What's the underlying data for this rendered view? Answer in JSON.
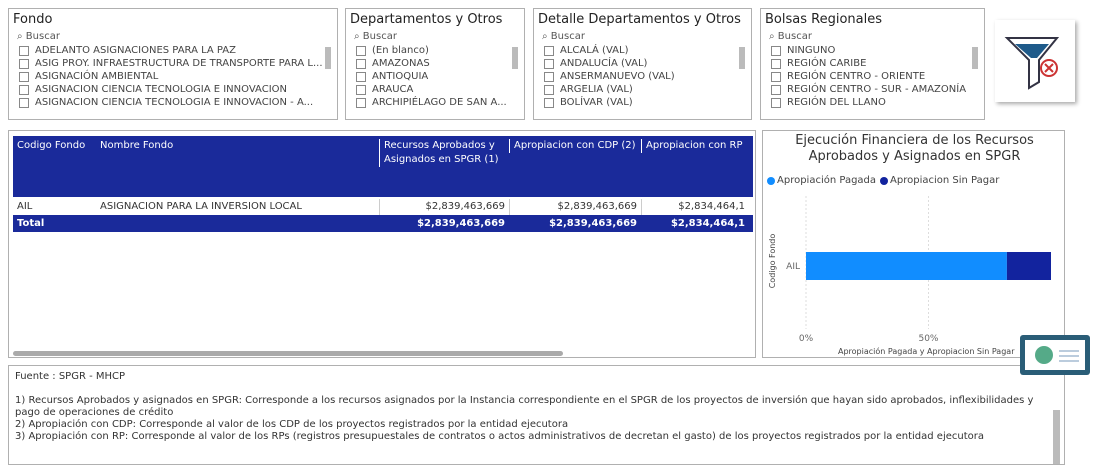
{
  "slicers": [
    {
      "title": "Fondo",
      "search": "Buscar",
      "items": [
        "ADELANTO ASIGNACIONES PARA LA PAZ",
        "ASIG PROY. INFRAESTRUCTURA DE TRANSPORTE PARA L...",
        "ASIGNACIÓN AMBIENTAL",
        "ASIGNACION CIENCIA TECNOLOGIA E INNOVACION",
        "ASIGNACION CIENCIA TECNOLOGIA E INNOVACION - A..."
      ]
    },
    {
      "title": "Departamentos y Otros",
      "search": "Buscar",
      "items": [
        "(En blanco)",
        "AMAZONAS",
        "ANTIOQUIA",
        "ARAUCA",
        "ARCHIPIÉLAGO DE SAN A..."
      ]
    },
    {
      "title": "Detalle Departamentos y Otros",
      "search": "Buscar",
      "items": [
        "ALCALÁ (VAL)",
        "ANDALUCÍA (VAL)",
        "ANSERMANUEVO (VAL)",
        "ARGELIA (VAL)",
        "BOLÍVAR (VAL)"
      ]
    },
    {
      "title": "Bolsas Regionales",
      "search": "Buscar",
      "items": [
        "NINGUNO",
        "REGIÓN CARIBE",
        "REGIÓN CENTRO - ORIENTE",
        "REGIÓN CENTRO - SUR - AMAZONÍA",
        "REGIÓN DEL LLANO"
      ]
    }
  ],
  "table": {
    "columns": [
      "Codigo Fondo",
      "Nombre Fondo",
      "Recursos Aprobados y Asignados en SPGR (1)",
      "Apropiacion con CDP (2)",
      "Apropiacion con RP"
    ],
    "rows": [
      [
        "AIL",
        "ASIGNACION PARA LA INVERSION LOCAL",
        "$2,839,463,669",
        "$2,839,463,669",
        "$2,834,464,1"
      ]
    ],
    "total": [
      "Total",
      "$2,839,463,669",
      "$2,839,463,669",
      "$2,834,464,1"
    ]
  },
  "chart": {
    "type": "bar",
    "title": "Ejecución Financiera de los Recursos Aprobados y Asignados en SPGR",
    "categories": [
      "AIL"
    ],
    "series": [
      {
        "name": "Apropiación Pagada",
        "color": "#118dff",
        "values": [
          82
        ]
      },
      {
        "name": "Apropiacion Sin Pagar",
        "color": "#12239e",
        "values": [
          18
        ]
      }
    ],
    "xlim": [
      0,
      100
    ],
    "xticks": [
      {
        "value": 0,
        "label": "0%"
      },
      {
        "value": 50,
        "label": "50%"
      }
    ],
    "xlabel": "Apropiación Pagada y Apropiacion Sin Pagar",
    "ylabel": "Codigo Fondo",
    "grid": true
  },
  "notes": {
    "source": "Fuente : SPGR - MHCP",
    "lines": [
      "1) Recursos Aprobados y asignados en SPGR: Corresponde a los recursos asignados por la Instancia correspondiente en el SPGR de los proyectos de inversión que hayan sido aprobados,  inflexibilidades y pago de operaciones de crédito",
      "2) Apropiación con CDP: Corresponde al valor de los CDP de los proyectos registrados por la entidad ejecutora",
      "3) Apropiación con RP: Corresponde al valor de los RPs (registros presupuestales de contratos o actos administrativos de decretan el gasto) de los proyectos registrados por la entidad ejecutora"
    ]
  }
}
